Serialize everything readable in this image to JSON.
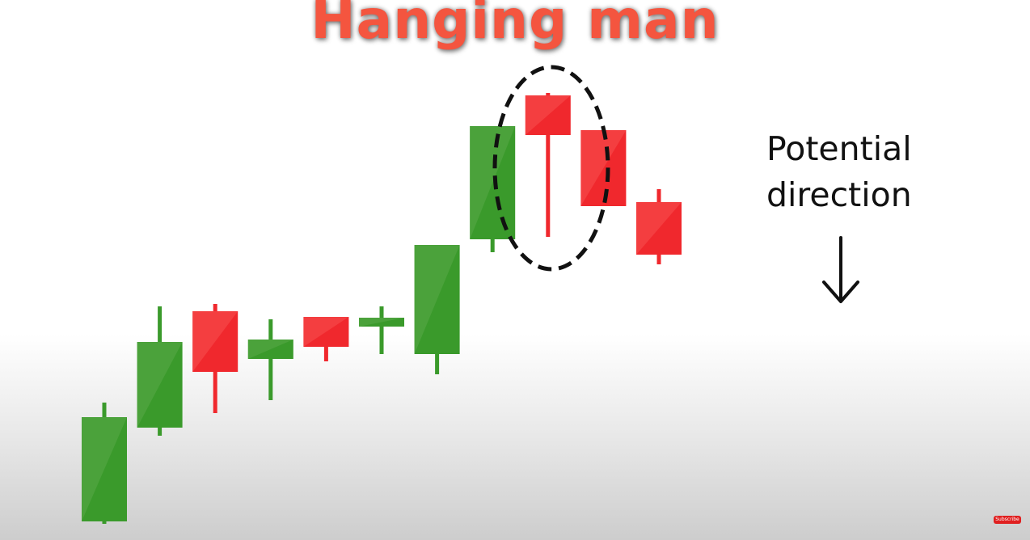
{
  "title": "Hanging man",
  "annotation": {
    "line1": "Potential",
    "line2": "direction"
  },
  "arrow_icon": "arrow-down-icon",
  "subscribe_label": "Subscribe",
  "colors": {
    "bullish": "#3a9a2b",
    "bullish_light": "#5aaa48",
    "bearish": "#f0282d",
    "bearish_light": "#f85050",
    "title": "#f4553f",
    "highlight": "#111111"
  },
  "chart_data": {
    "type": "candlestick",
    "title": "Hanging man",
    "highlighted_index": 8,
    "candles": [
      {
        "open": 20,
        "close": 149,
        "high": 167,
        "low": 17
      },
      {
        "open": 136,
        "close": 242,
        "high": 286,
        "low": 126
      },
      {
        "open": 280,
        "close": 205,
        "high": 289,
        "low": 154
      },
      {
        "open": 221,
        "close": 245,
        "high": 270,
        "low": 170
      },
      {
        "open": 273,
        "close": 236,
        "high": 273,
        "low": 218
      },
      {
        "open": 261,
        "close": 272,
        "high": 286,
        "low": 227
      },
      {
        "open": 227,
        "close": 362,
        "high": 362,
        "low": 202
      },
      {
        "open": 369,
        "close": 509,
        "high": 509,
        "low": 353
      },
      {
        "open": 547,
        "close": 498,
        "high": 550,
        "low": 372
      },
      {
        "open": 504,
        "close": 410,
        "high": 504,
        "low": 410
      },
      {
        "open": 415,
        "close": 350,
        "high": 431,
        "low": 338
      }
    ]
  }
}
